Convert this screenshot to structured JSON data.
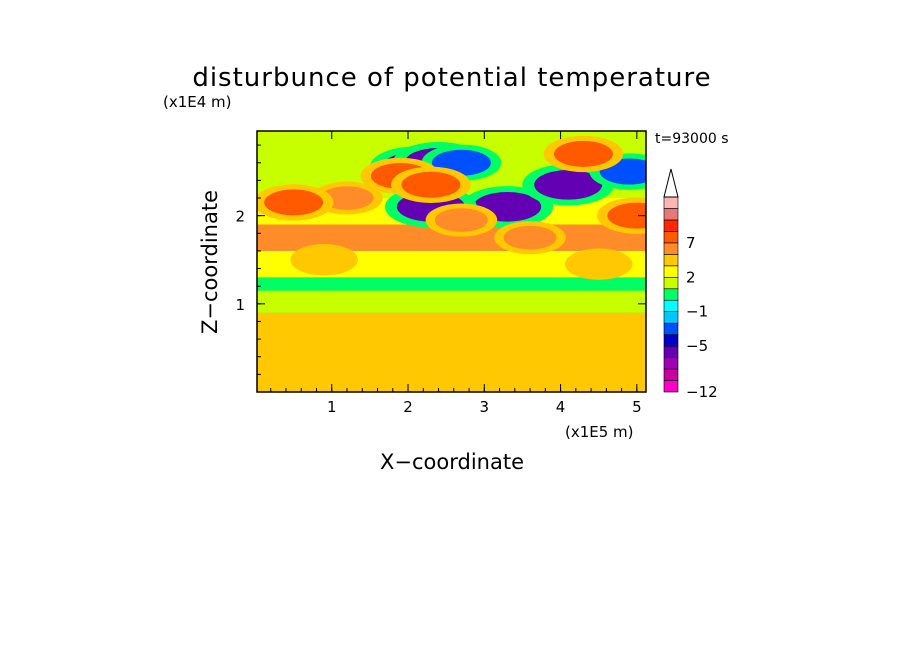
{
  "chart_data": {
    "type": "heatmap",
    "title": "disturbunce of potential temperature",
    "xlabel": "X−coordinate",
    "ylabel": "Z−coordinate",
    "x_unit": "(x1E5 m)",
    "y_unit": "(x1E4 m)",
    "time_label": "t=93000 s",
    "xlim": [
      0.02,
      5.12
    ],
    "ylim": [
      0.0,
      2.96
    ],
    "x_ticks": [
      1,
      2,
      3,
      4,
      5
    ],
    "y_ticks": [
      1,
      2
    ],
    "x_tick_labels": [
      "1",
      "2",
      "3",
      "4",
      "5"
    ],
    "y_tick_labels": [
      "1",
      "2"
    ],
    "colorbar": {
      "levels": [
        -12,
        -10,
        -8,
        -7,
        -5,
        -3,
        -2,
        -1,
        0,
        1,
        2,
        3,
        5,
        7,
        8,
        10
      ],
      "colors": [
        "#ff00c8",
        "#c800a0",
        "#a000b4",
        "#6400b4",
        "#0000c8",
        "#0050ff",
        "#00c8ff",
        "#00ffff",
        "#00ff64",
        "#c8ff00",
        "#ffff00",
        "#ffc800",
        "#ff8c28",
        "#ff5a00",
        "#ff2800",
        "#e67878",
        "#ffb4b4"
      ],
      "tick_values": [
        -12,
        -5,
        -1,
        2,
        7
      ],
      "tick_labels": [
        "−12",
        "−5",
        "−1",
        "2",
        "7"
      ],
      "extend": "max"
    },
    "field_features": [
      {
        "x": 2.1,
        "z": 2.55,
        "value": -8
      },
      {
        "x": 2.4,
        "z": 2.6,
        "value": -8
      },
      {
        "x": 3.3,
        "z": 2.1,
        "value": -8
      },
      {
        "x": 4.1,
        "z": 2.35,
        "value": -8
      },
      {
        "x": 4.9,
        "z": 2.5,
        "value": -5
      },
      {
        "x": 2.3,
        "z": 2.1,
        "value": -8
      },
      {
        "x": 2.7,
        "z": 2.6,
        "value": -5
      },
      {
        "x": 1.2,
        "z": 2.2,
        "value": 3
      },
      {
        "x": 0.5,
        "z": 2.15,
        "value": 5
      },
      {
        "x": 1.9,
        "z": 2.45,
        "value": 5
      },
      {
        "x": 2.3,
        "z": 2.35,
        "value": 5
      },
      {
        "x": 4.3,
        "z": 2.7,
        "value": 5
      },
      {
        "x": 3.6,
        "z": 1.75,
        "value": 3
      },
      {
        "x": 5.0,
        "z": 2.0,
        "value": 5
      },
      {
        "x": 2.7,
        "z": 1.95,
        "value": 3
      },
      {
        "x": 0.9,
        "z": 1.5,
        "value": 2
      },
      {
        "x": 4.5,
        "z": 1.45,
        "value": 2
      },
      {
        "x": 1.6,
        "z": 0.7,
        "value": 2
      },
      {
        "x": 4.0,
        "z": 0.6,
        "value": 2
      },
      {
        "x": 3.1,
        "z": 0.5,
        "value": 2
      }
    ]
  }
}
